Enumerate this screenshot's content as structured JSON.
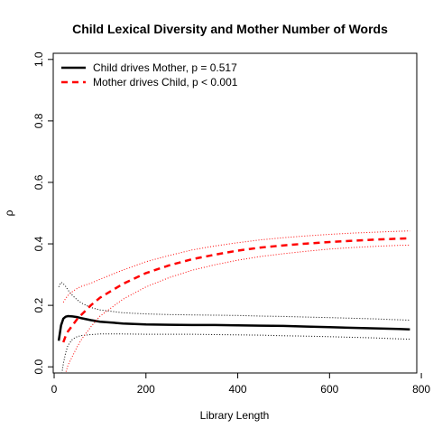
{
  "chart_data": {
    "type": "line",
    "title": "Child Lexical Diversity and Mother Number of Words",
    "xlabel": "Library Length",
    "ylabel": "ρ",
    "xlim": [
      -2,
      790
    ],
    "ylim": [
      -0.02,
      1.02
    ],
    "x_ticks": [
      0,
      200,
      400,
      600,
      800
    ],
    "y_ticks": [
      0.0,
      0.2,
      0.4,
      0.6,
      0.8,
      1.0
    ],
    "x_tick_labels": [
      "0",
      "200",
      "400",
      "600",
      "800"
    ],
    "y_tick_labels": [
      "0.0",
      "0.2",
      "0.4",
      "0.6",
      "0.8",
      "1.0"
    ],
    "grid": false,
    "legend_position": "top-left",
    "series": [
      {
        "name": "Child drives Mother, p = 0.517",
        "color": "#000000",
        "style": "solid",
        "x": [
          10,
          15,
          20,
          25,
          30,
          40,
          50,
          60,
          80,
          100,
          150,
          200,
          250,
          300,
          350,
          400,
          450,
          500,
          550,
          600,
          650,
          700,
          750,
          775
        ],
        "mean": [
          0.085,
          0.135,
          0.157,
          0.163,
          0.165,
          0.164,
          0.162,
          0.158,
          0.152,
          0.147,
          0.141,
          0.138,
          0.137,
          0.136,
          0.136,
          0.135,
          0.134,
          0.133,
          0.131,
          0.129,
          0.127,
          0.125,
          0.123,
          0.122
        ],
        "upper": [
          0.26,
          0.275,
          0.27,
          0.262,
          0.25,
          0.232,
          0.218,
          0.207,
          0.193,
          0.185,
          0.176,
          0.172,
          0.17,
          0.169,
          0.168,
          0.167,
          0.165,
          0.164,
          0.162,
          0.16,
          0.158,
          0.156,
          0.153,
          0.152
        ],
        "lower": [
          -0.1,
          -0.04,
          0.01,
          0.045,
          0.07,
          0.09,
          0.098,
          0.102,
          0.105,
          0.107,
          0.107,
          0.106,
          0.106,
          0.106,
          0.105,
          0.104,
          0.103,
          0.101,
          0.1,
          0.098,
          0.096,
          0.094,
          0.091,
          0.09
        ]
      },
      {
        "name": "Mother drives Child, p < 0.001",
        "color": "#ff0000",
        "style": "dashed",
        "x": [
          20,
          25,
          30,
          40,
          50,
          60,
          80,
          100,
          150,
          200,
          250,
          300,
          350,
          400,
          450,
          500,
          550,
          600,
          650,
          700,
          750,
          775
        ],
        "mean": [
          0.08,
          0.1,
          0.115,
          0.135,
          0.155,
          0.17,
          0.2,
          0.225,
          0.27,
          0.305,
          0.33,
          0.35,
          0.365,
          0.378,
          0.388,
          0.395,
          0.401,
          0.406,
          0.41,
          0.414,
          0.417,
          0.418
        ],
        "upper": [
          0.21,
          0.222,
          0.232,
          0.245,
          0.255,
          0.262,
          0.272,
          0.285,
          0.315,
          0.342,
          0.362,
          0.38,
          0.393,
          0.404,
          0.413,
          0.42,
          0.426,
          0.431,
          0.435,
          0.438,
          0.441,
          0.442
        ],
        "lower": [
          -0.05,
          -0.02,
          0.005,
          0.035,
          0.065,
          0.09,
          0.13,
          0.165,
          0.22,
          0.26,
          0.29,
          0.314,
          0.332,
          0.347,
          0.359,
          0.368,
          0.376,
          0.383,
          0.388,
          0.392,
          0.395,
          0.396
        ]
      }
    ]
  }
}
